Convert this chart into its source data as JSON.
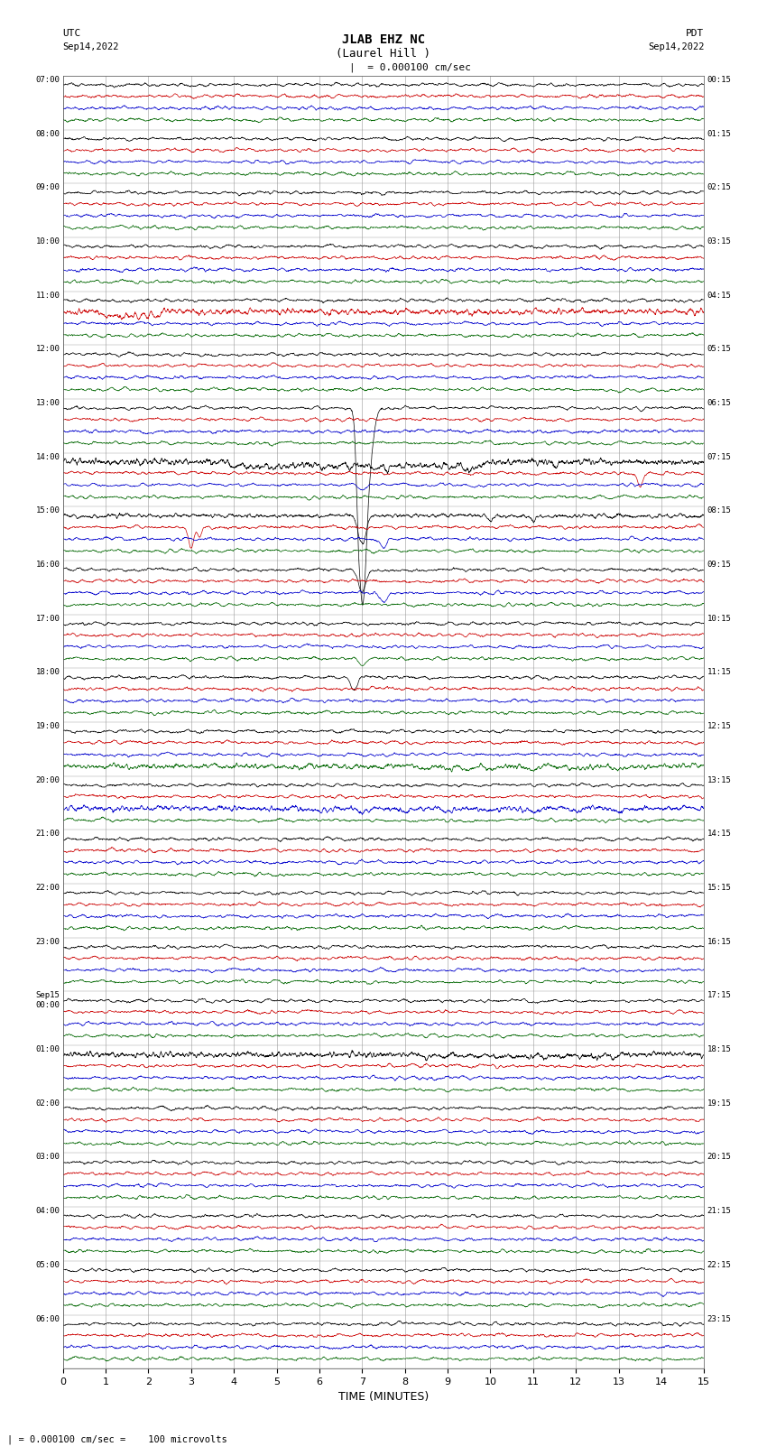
{
  "title_line1": "JLAB EHZ NC",
  "title_line2": "(Laurel Hill )",
  "scale_text": "= 0.000100 cm/sec",
  "footer_text": "= 0.000100 cm/sec =    100 microvolts",
  "utc_label": "UTC",
  "pdt_label": "PDT",
  "date_left": "Sep14,2022",
  "date_right": "Sep14,2022",
  "xlabel": "TIME (MINUTES)",
  "bg_color": "#ffffff",
  "trace_colors": [
    "#000000",
    "#cc0000",
    "#0000cc",
    "#006600"
  ],
  "left_times": [
    "07:00",
    "08:00",
    "09:00",
    "10:00",
    "11:00",
    "12:00",
    "13:00",
    "14:00",
    "15:00",
    "16:00",
    "17:00",
    "18:00",
    "19:00",
    "20:00",
    "21:00",
    "22:00",
    "23:00",
    "Sep15\n00:00",
    "01:00",
    "02:00",
    "03:00",
    "04:00",
    "05:00",
    "06:00"
  ],
  "right_times": [
    "00:15",
    "01:15",
    "02:15",
    "03:15",
    "04:15",
    "05:15",
    "06:15",
    "07:15",
    "08:15",
    "09:15",
    "10:15",
    "11:15",
    "12:15",
    "13:15",
    "14:15",
    "15:15",
    "16:15",
    "17:15",
    "18:15",
    "19:15",
    "20:15",
    "21:15",
    "22:15",
    "23:15"
  ],
  "num_rows": 24,
  "xmin": 0,
  "xmax": 15,
  "figsize": [
    8.5,
    16.13
  ],
  "dpi": 100
}
